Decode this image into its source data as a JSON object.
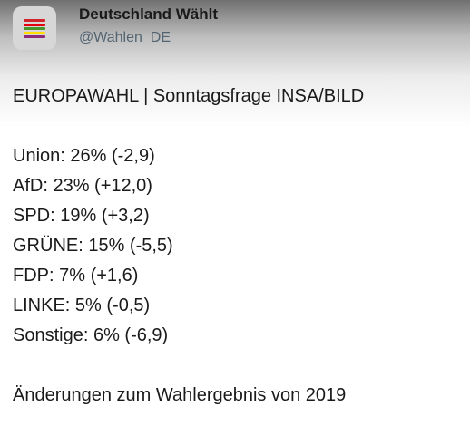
{
  "account": {
    "display_name": "Deutschland Wählt",
    "handle": "@Wahlen_DE",
    "avatar_icon": "party-colors-flag-icon",
    "avatar_colors": [
      "#1b1b1b",
      "#d2232a",
      "#e3000f",
      "#46962b",
      "#ffdd00",
      "#8b2b7a"
    ]
  },
  "tweet": {
    "headline": "EUROPAWAHL | Sonntagsfrage INSA/BILD",
    "results": [
      "Union: 26% (-2,9)",
      "AfD: 23% (+12,0)",
      "SPD: 19% (+3,2)",
      "GRÜNE: 15% (-5,5)",
      "FDP: 7% (+1,6)",
      "LINKE: 5% (-0,5)",
      "Sonstige: 6% (-6,9)"
    ],
    "footer": "Änderungen zum Wahlergebnis von 2019"
  }
}
